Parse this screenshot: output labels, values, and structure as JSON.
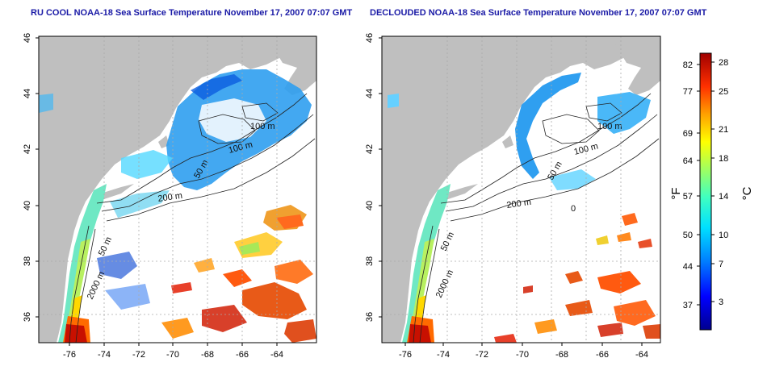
{
  "panels": [
    {
      "title": "RU COOL NOAA-18 Sea Surface Temperature November 17, 2007 07:07 GMT",
      "x_ticks": [
        "-76",
        "-74",
        "-72",
        "-70",
        "-68",
        "-66",
        "-64"
      ],
      "y_ticks": [
        "46",
        "44",
        "42",
        "40",
        "38",
        "36"
      ],
      "contour_labels": [
        "100 m",
        "100 m",
        "50 m",
        "200 m",
        "50 m",
        "2000 m"
      ]
    },
    {
      "title": "DECLOUDED NOAA-18 Sea Surface Temperature November 17, 2007 07:07 GMT",
      "x_ticks": [
        "-76",
        "-74",
        "-72",
        "-70",
        "-68",
        "-66",
        "-64"
      ],
      "y_ticks": [
        "46",
        "44",
        "42",
        "40",
        "38",
        "36"
      ],
      "contour_labels": [
        "100 m",
        "100 m",
        "50 m",
        "200 m",
        "0",
        "50 m",
        "2000 m"
      ]
    }
  ],
  "colorbar": {
    "f_label": "°F",
    "c_label": "°C",
    "f_ticks": [
      "82",
      "77",
      "69",
      "64",
      "57",
      "50",
      "44",
      "37"
    ],
    "c_ticks": [
      "28",
      "25",
      "21",
      "18",
      "14",
      "10",
      "7",
      "3"
    ]
  },
  "colors": {
    "title": "#1a1aa6",
    "land": "#bfbfbf",
    "ocean": "#ffffff",
    "scale": [
      "#00008f",
      "#0000ff",
      "#0080ff",
      "#00e0ff",
      "#40ffc0",
      "#a0ff60",
      "#ffff00",
      "#ffa000",
      "#ff3000",
      "#a00000"
    ]
  }
}
